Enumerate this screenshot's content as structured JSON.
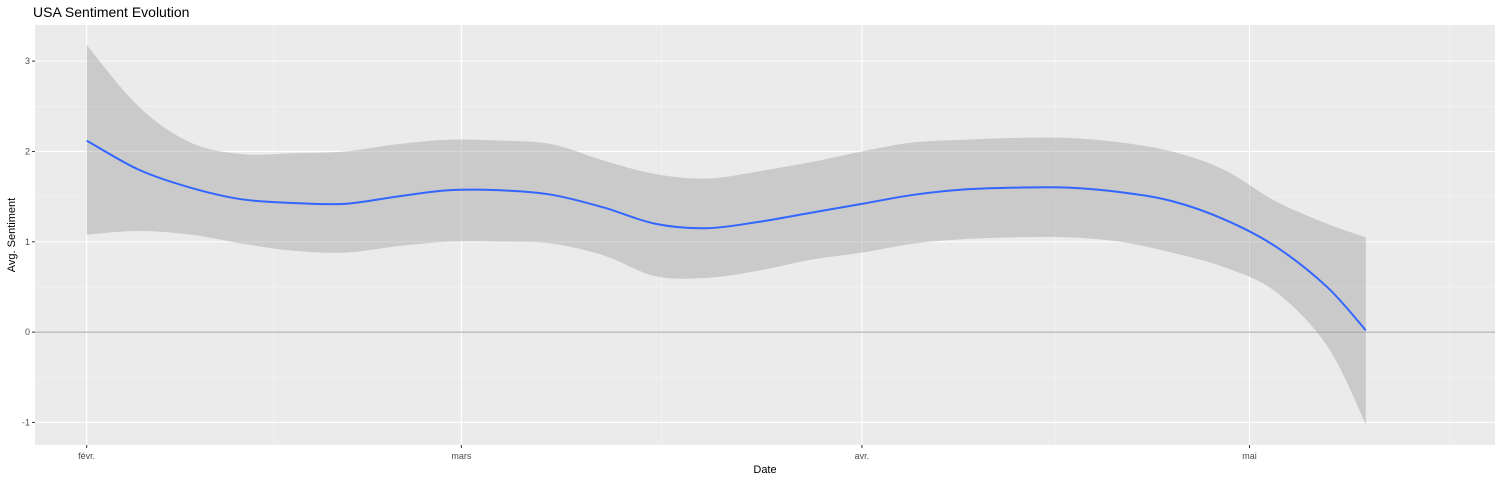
{
  "chart_data": {
    "type": "line",
    "title": "USA Sentiment Evolution",
    "xlabel": "Date",
    "ylabel": "Avg. Sentiment",
    "x_ticks": [
      "févr.",
      "mars",
      "avr.",
      "mai"
    ],
    "y_ticks": [
      -1,
      0,
      1,
      2,
      3
    ],
    "ylim": [
      -1.25,
      3.4
    ],
    "xlim": [
      "2020-01-28",
      "2020-05-20"
    ],
    "grid": true,
    "reference_line": 0,
    "series": [
      {
        "x": [
          "2020-02-01",
          "2020-02-05",
          "2020-02-09",
          "2020-02-13",
          "2020-02-17",
          "2020-02-21",
          "2020-02-25",
          "2020-02-29",
          "2020-03-04",
          "2020-03-08",
          "2020-03-12",
          "2020-03-16",
          "2020-03-20",
          "2020-03-24",
          "2020-03-28",
          "2020-04-01",
          "2020-04-05",
          "2020-04-09",
          "2020-04-13",
          "2020-04-17",
          "2020-04-21",
          "2020-04-25",
          "2020-04-29",
          "2020-05-03",
          "2020-05-07",
          "2020-05-10"
        ],
        "y": [
          2.12,
          1.8,
          1.6,
          1.47,
          1.43,
          1.42,
          1.5,
          1.57,
          1.57,
          1.52,
          1.38,
          1.2,
          1.15,
          1.22,
          1.32,
          1.42,
          1.52,
          1.58,
          1.6,
          1.6,
          1.55,
          1.45,
          1.25,
          0.95,
          0.5,
          0.02
        ],
        "lower": [
          1.08,
          1.12,
          1.08,
          0.98,
          0.9,
          0.88,
          0.95,
          1.0,
          1.0,
          0.98,
          0.85,
          0.62,
          0.6,
          0.68,
          0.8,
          0.88,
          0.98,
          1.03,
          1.05,
          1.05,
          1.0,
          0.88,
          0.72,
          0.45,
          -0.15,
          -1.02
        ],
        "upper": [
          3.18,
          2.5,
          2.1,
          1.97,
          1.98,
          2.0,
          2.08,
          2.13,
          2.12,
          2.08,
          1.9,
          1.75,
          1.7,
          1.78,
          1.88,
          2.0,
          2.1,
          2.13,
          2.15,
          2.15,
          2.1,
          2.0,
          1.8,
          1.45,
          1.2,
          1.05
        ]
      }
    ]
  }
}
